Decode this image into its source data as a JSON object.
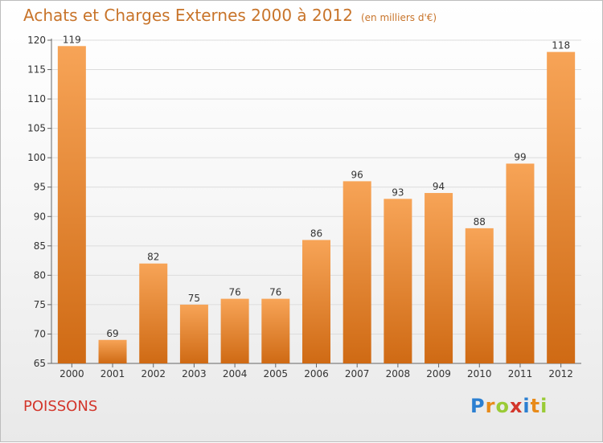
{
  "header": {
    "title": "Achats et Charges Externes 2000 à 2012",
    "unit": "(en milliers d'€)"
  },
  "footer": {
    "city": "POISSONS",
    "logo": [
      "P",
      "r",
      "o",
      "x",
      "i",
      "t",
      "i"
    ],
    "logo_colors": [
      "#2b7fd1",
      "#e88b1a",
      "#9acb36",
      "#d3362b",
      "#2b7fd1",
      "#e88b1a",
      "#9acb36"
    ]
  },
  "colors": {
    "bar_top": "#f7a457",
    "bar_bottom": "#cf6a14",
    "title": "#c8742a",
    "city": "#d3362b"
  },
  "chart_data": {
    "type": "bar",
    "title": "Achats et Charges Externes 2000 à 2012",
    "subtitle": "(en milliers d'€)",
    "categories": [
      "2000",
      "2001",
      "2002",
      "2003",
      "2004",
      "2005",
      "2006",
      "2007",
      "2008",
      "2009",
      "2010",
      "2011",
      "2012"
    ],
    "values": [
      119,
      69,
      82,
      75,
      76,
      76,
      86,
      96,
      93,
      94,
      88,
      99,
      118
    ],
    "ylim": [
      65,
      120
    ],
    "yticks": [
      65,
      70,
      75,
      80,
      85,
      90,
      95,
      100,
      105,
      110,
      115,
      120
    ],
    "grid": true
  }
}
